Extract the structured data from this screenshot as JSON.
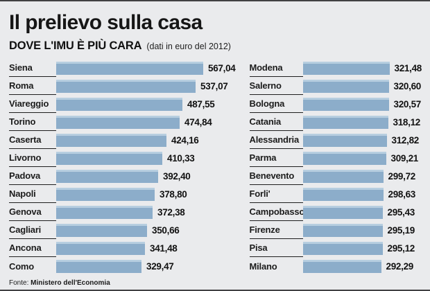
{
  "header": {
    "title": "Il prelievo sulla casa",
    "subtitle": "DOVE L'IMU È PIÙ CARA",
    "note": "(dati in euro del 2012)"
  },
  "footer": {
    "source_label": "Fonte:",
    "source_value": "Ministero dell'Economia"
  },
  "colors": {
    "bar": "#8cadca",
    "bar_highlight": "#b7cee0",
    "background": "#eaebed",
    "border": "#414143",
    "text": "#1b1b1b"
  },
  "chart_data": {
    "type": "bar",
    "orientation": "horizontal",
    "title": "DOVE L'IMU È PIÙ CARA (dati in euro del 2012)",
    "unit": "euro del 2012",
    "value_format": "decimal-comma",
    "xlim": [
      0,
      567.04
    ],
    "grid": false,
    "legend": false,
    "columns": [
      {
        "items": [
          {
            "label": "Siena",
            "value": 567.04
          },
          {
            "label": "Roma",
            "value": 537.07
          },
          {
            "label": "Viareggio",
            "value": 487.55
          },
          {
            "label": "Torino",
            "value": 474.84
          },
          {
            "label": "Caserta",
            "value": 424.16
          },
          {
            "label": "Livorno",
            "value": 410.33
          },
          {
            "label": "Padova",
            "value": 392.4
          },
          {
            "label": "Napoli",
            "value": 378.8
          },
          {
            "label": "Genova",
            "value": 372.38
          },
          {
            "label": "Cagliari",
            "value": 350.66
          },
          {
            "label": "Ancona",
            "value": 341.48
          },
          {
            "label": "Como",
            "value": 329.47
          }
        ]
      },
      {
        "items": [
          {
            "label": "Modena",
            "value": 321.48
          },
          {
            "label": "Salerno",
            "value": 320.6
          },
          {
            "label": "Bologna",
            "value": 320.57
          },
          {
            "label": "Catania",
            "value": 318.12
          },
          {
            "label": "Alessandria",
            "value": 312.82
          },
          {
            "label": "Parma",
            "value": 309.21
          },
          {
            "label": "Benevento",
            "value": 299.72
          },
          {
            "label": "Forli'",
            "value": 298.63
          },
          {
            "label": "Campobasso",
            "value": 295.43
          },
          {
            "label": "Firenze",
            "value": 295.19
          },
          {
            "label": "Pisa",
            "value": 295.12
          },
          {
            "label": "Milano",
            "value": 292.29
          }
        ]
      }
    ]
  }
}
